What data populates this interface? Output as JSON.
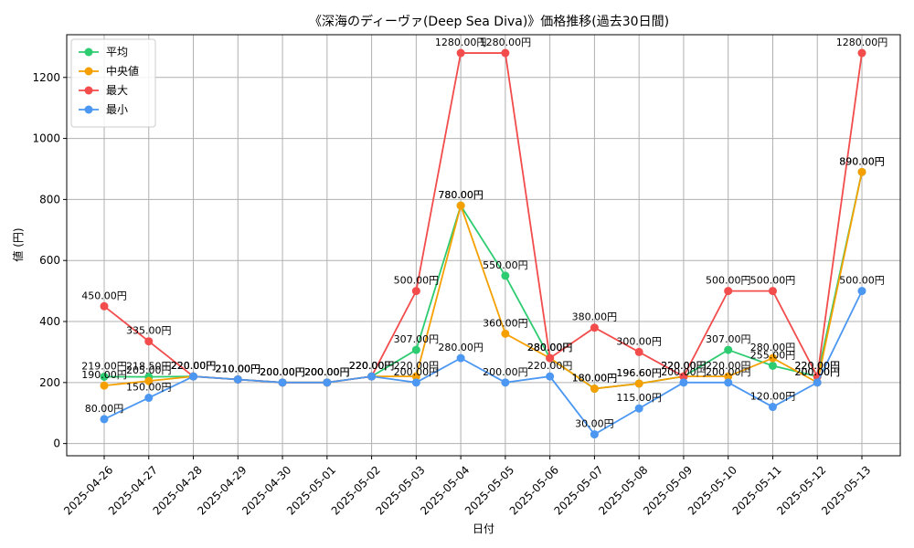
{
  "chart_data": {
    "type": "line",
    "title": "《深海のディーヴァ(Deep Sea Diva)》価格推移(過去30日間)",
    "xlabel": "日付",
    "ylabel": "値 (円)",
    "ylim": [
      -40,
      1340
    ],
    "yticks": [
      0,
      200,
      400,
      600,
      800,
      1000,
      1200
    ],
    "grid": true,
    "legend_position": "top-left",
    "value_suffix": "円",
    "categories": [
      "2025-04-26",
      "2025-04-27",
      "2025-04-28",
      "2025-04-29",
      "2025-04-30",
      "2025-05-01",
      "2025-05-02",
      "2025-05-03",
      "2025-05-04",
      "2025-05-05",
      "2025-05-06",
      "2025-05-07",
      "2025-05-08",
      "2025-05-09",
      "2025-05-10",
      "2025-05-11",
      "2025-05-12",
      "2025-05-13"
    ],
    "series": [
      {
        "name": "平均",
        "color": "#2ecc71",
        "values": [
          219.0,
          218.5,
          220.0,
          210.0,
          200.0,
          200.0,
          220.0,
          307.0,
          780.0,
          550.0,
          280.0,
          180.0,
          196.6,
          220.0,
          307.0,
          255.0,
          220.0,
          890.0
        ]
      },
      {
        "name": "中央値",
        "color": "#f5a000",
        "values": [
          190.0,
          205.0,
          220.0,
          210.0,
          200.0,
          200.0,
          220.0,
          220.0,
          780.0,
          360.0,
          280.0,
          180.0,
          196.6,
          220.0,
          220.0,
          280.0,
          200.0,
          890.0
        ]
      },
      {
        "name": "最大",
        "color": "#f24c4c",
        "values": [
          450.0,
          335.0,
          220.0,
          210.0,
          200.0,
          200.0,
          220.0,
          500.0,
          1280.0,
          1280.0,
          280.0,
          380.0,
          300.0,
          220.0,
          500.0,
          500.0,
          220.0,
          1280.0
        ]
      },
      {
        "name": "最小",
        "color": "#4b97f2",
        "values": [
          80.0,
          150.0,
          220.0,
          210.0,
          200.0,
          200.0,
          220.0,
          200.0,
          280.0,
          200.0,
          220.0,
          30.0,
          115.0,
          200.0,
          200.0,
          120.0,
          200.0,
          500.0
        ]
      }
    ]
  }
}
